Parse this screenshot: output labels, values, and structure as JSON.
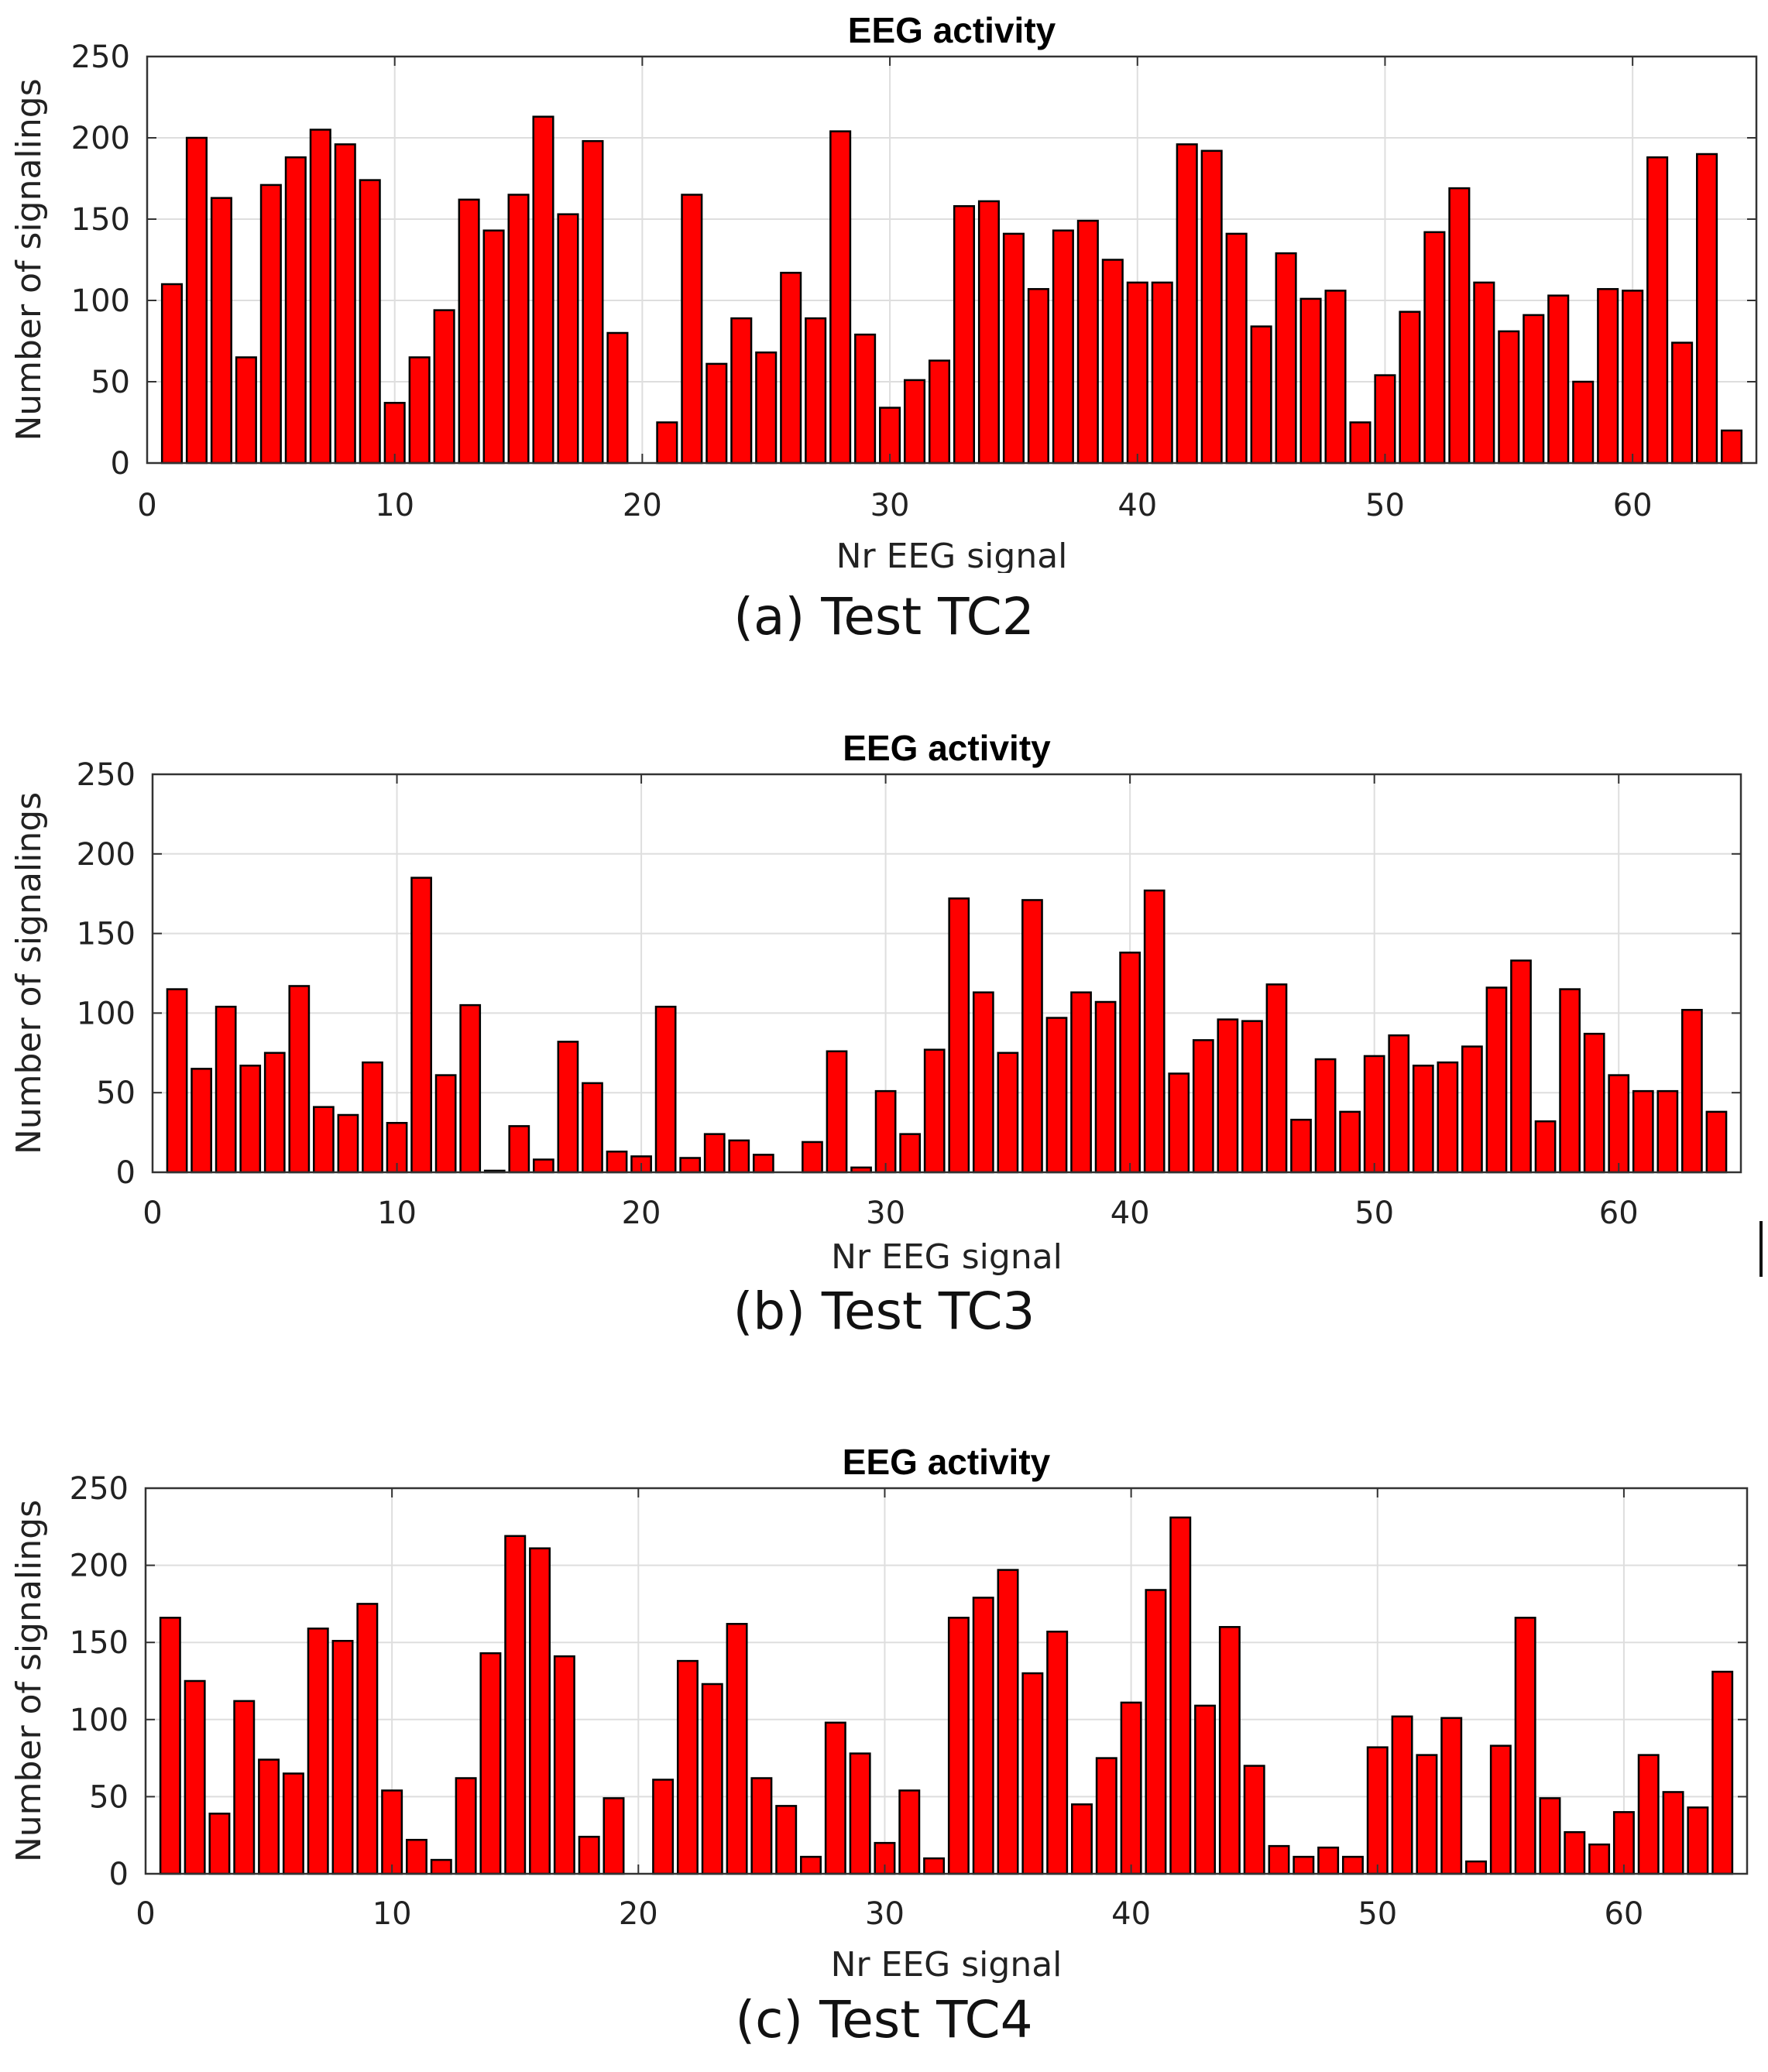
{
  "figures": [
    {
      "id": "a",
      "caption": "(a)  Test TC2"
    },
    {
      "id": "b",
      "caption": "(b)  Test TC3"
    },
    {
      "id": "c",
      "caption": "(c)  Test TC4"
    }
  ],
  "colors": {
    "bar_fill": "#ff0000",
    "bar_stroke": "#000000",
    "grid": "#dedede",
    "axis": "#333333"
  },
  "chart_data": [
    {
      "type": "bar",
      "title": "EEG activity",
      "xlabel": "Nr EEG signal",
      "ylabel": "Number of signalings",
      "xlim": [
        0,
        65
      ],
      "ylim": [
        0,
        250
      ],
      "xticks": [
        0,
        10,
        20,
        30,
        40,
        50,
        60
      ],
      "yticks": [
        0,
        50,
        100,
        150,
        200,
        250
      ],
      "grid": true,
      "x": [
        1,
        2,
        3,
        4,
        5,
        6,
        7,
        8,
        9,
        10,
        11,
        12,
        13,
        14,
        15,
        16,
        17,
        18,
        19,
        20,
        21,
        22,
        23,
        24,
        25,
        26,
        27,
        28,
        29,
        30,
        31,
        32,
        33,
        34,
        35,
        36,
        37,
        38,
        39,
        40,
        41,
        42,
        43,
        44,
        45,
        46,
        47,
        48,
        49,
        50,
        51,
        52,
        53,
        54,
        55,
        56,
        57,
        58,
        59,
        60,
        61,
        62,
        63,
        64
      ],
      "values": [
        110,
        200,
        163,
        65,
        171,
        188,
        205,
        196,
        174,
        37,
        65,
        94,
        162,
        143,
        165,
        213,
        153,
        198,
        80,
        0,
        25,
        165,
        61,
        89,
        68,
        117,
        89,
        204,
        79,
        34,
        51,
        63,
        158,
        161,
        141,
        107,
        143,
        149,
        125,
        111,
        111,
        196,
        192,
        141,
        84,
        129,
        101,
        106,
        25,
        54,
        93,
        142,
        169,
        111,
        81,
        91,
        103,
        50,
        107,
        106,
        188,
        74,
        190,
        20
      ]
    },
    {
      "type": "bar",
      "title": "EEG activity",
      "xlabel": "Nr EEG signal",
      "ylabel": "Number of signalings",
      "xlim": [
        0,
        65
      ],
      "ylim": [
        0,
        250
      ],
      "xticks": [
        0,
        10,
        20,
        30,
        40,
        50,
        60
      ],
      "yticks": [
        0,
        50,
        100,
        150,
        200,
        250
      ],
      "grid": true,
      "x": [
        1,
        2,
        3,
        4,
        5,
        6,
        7,
        8,
        9,
        10,
        11,
        12,
        13,
        14,
        15,
        16,
        17,
        18,
        19,
        20,
        21,
        22,
        23,
        24,
        25,
        26,
        27,
        28,
        29,
        30,
        31,
        32,
        33,
        34,
        35,
        36,
        37,
        38,
        39,
        40,
        41,
        42,
        43,
        44,
        45,
        46,
        47,
        48,
        49,
        50,
        51,
        52,
        53,
        54,
        55,
        56,
        57,
        58,
        59,
        60,
        61,
        62,
        63,
        64
      ],
      "values": [
        115,
        65,
        104,
        67,
        75,
        117,
        41,
        36,
        69,
        31,
        185,
        61,
        105,
        1,
        29,
        8,
        82,
        56,
        13,
        10,
        104,
        9,
        24,
        20,
        11,
        0,
        19,
        76,
        3,
        51,
        24,
        77,
        172,
        113,
        75,
        171,
        97,
        113,
        107,
        138,
        177,
        62,
        83,
        96,
        95,
        118,
        33,
        71,
        38,
        73,
        86,
        67,
        69,
        79,
        116,
        133,
        32,
        115,
        87,
        61,
        51,
        51,
        102,
        38
      ]
    },
    {
      "type": "bar",
      "title": "EEG activity",
      "xlabel": "Nr EEG signal",
      "ylabel": "Number of signalings",
      "xlim": [
        0,
        65
      ],
      "ylim": [
        0,
        250
      ],
      "xticks": [
        0,
        10,
        20,
        30,
        40,
        50,
        60
      ],
      "yticks": [
        0,
        50,
        100,
        150,
        200,
        250
      ],
      "grid": true,
      "x": [
        1,
        2,
        3,
        4,
        5,
        6,
        7,
        8,
        9,
        10,
        11,
        12,
        13,
        14,
        15,
        16,
        17,
        18,
        19,
        20,
        21,
        22,
        23,
        24,
        25,
        26,
        27,
        28,
        29,
        30,
        31,
        32,
        33,
        34,
        35,
        36,
        37,
        38,
        39,
        40,
        41,
        42,
        43,
        44,
        45,
        46,
        47,
        48,
        49,
        50,
        51,
        52,
        53,
        54,
        55,
        56,
        57,
        58,
        59,
        60,
        61,
        62,
        63,
        64
      ],
      "values": [
        166,
        125,
        39,
        112,
        74,
        65,
        159,
        151,
        175,
        54,
        22,
        9,
        62,
        143,
        219,
        211,
        141,
        24,
        49,
        0,
        61,
        138,
        123,
        162,
        62,
        44,
        11,
        98,
        78,
        20,
        54,
        10,
        166,
        179,
        197,
        130,
        157,
        45,
        75,
        111,
        184,
        231,
        109,
        160,
        70,
        18,
        11,
        17,
        11,
        82,
        102,
        77,
        101,
        8,
        83,
        166,
        49,
        27,
        19,
        40,
        77,
        53,
        43,
        131
      ]
    }
  ]
}
